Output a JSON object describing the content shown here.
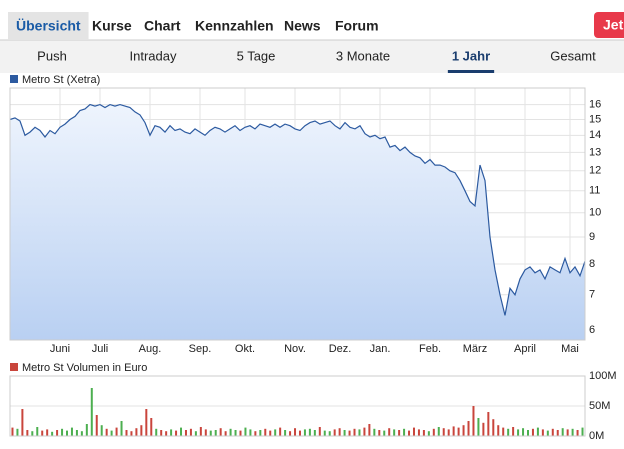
{
  "nav": {
    "tabs": [
      "Übersicht",
      "Kurse",
      "Chart",
      "Kennzahlen",
      "News",
      "Forum"
    ],
    "selected": 0,
    "button": "Jet"
  },
  "range_tabs": {
    "tabs": [
      "Push",
      "Intraday",
      "5 Tage",
      "3 Monate",
      "1 Jahr",
      "Gesamt"
    ],
    "selected": 4
  },
  "chart_data": [
    {
      "type": "line",
      "log": true,
      "grid": true,
      "categories": [
        null,
        null,
        null,
        null,
        null,
        null,
        null,
        null,
        null,
        null,
        "Juni",
        null,
        null,
        null,
        null,
        null,
        null,
        null,
        "Juli",
        null,
        null,
        null,
        null,
        null,
        null,
        null,
        null,
        null,
        "Aug.",
        null,
        null,
        null,
        null,
        null,
        null,
        null,
        null,
        null,
        "Sep.",
        null,
        null,
        null,
        null,
        null,
        null,
        null,
        null,
        "Okt.",
        null,
        null,
        null,
        null,
        null,
        null,
        null,
        null,
        null,
        "Nov.",
        null,
        null,
        null,
        null,
        null,
        null,
        null,
        null,
        "Dez.",
        null,
        null,
        null,
        null,
        null,
        null,
        null,
        "Jan.",
        null,
        null,
        null,
        null,
        null,
        null,
        null,
        null,
        null,
        "Feb.",
        null,
        null,
        null,
        null,
        null,
        null,
        null,
        null,
        "März",
        null,
        null,
        null,
        null,
        null,
        null,
        null,
        null,
        null,
        "April",
        null,
        null,
        null,
        null,
        null,
        null,
        null,
        null,
        "Mai",
        null,
        null,
        null
      ],
      "series": [
        {
          "name": "Metro St (Xetra)",
          "color": "#2c5aa0",
          "values": [
            15.0,
            15.1,
            14.9,
            14.0,
            14.2,
            14.5,
            14.3,
            13.9,
            14.3,
            14.1,
            14.5,
            14.7,
            15.0,
            15.2,
            15.6,
            15.7,
            16.0,
            15.9,
            16.0,
            15.8,
            16.0,
            15.9,
            16.0,
            15.9,
            15.8,
            15.5,
            15.3,
            14.8,
            14.0,
            14.6,
            14.5,
            14.2,
            14.6,
            14.3,
            14.4,
            14.2,
            14.1,
            14.4,
            14.2,
            14.0,
            14.3,
            14.5,
            14.4,
            14.2,
            14.4,
            14.6,
            14.3,
            14.5,
            14.6,
            14.4,
            14.7,
            14.6,
            14.5,
            14.7,
            14.5,
            14.7,
            14.6,
            14.4,
            14.3,
            14.6,
            14.8,
            14.9,
            14.7,
            14.8,
            14.9,
            14.6,
            14.4,
            14.8,
            14.5,
            14.4,
            14.6,
            14.1,
            13.9,
            14.0,
            13.8,
            13.9,
            13.3,
            13.4,
            13.1,
            13.3,
            13.0,
            12.8,
            12.7,
            12.4,
            12.6,
            12.3,
            12.3,
            12.2,
            12.0,
            11.9,
            11.5,
            11.0,
            10.5,
            10.3,
            12.3,
            11.5,
            9.0,
            7.8,
            7.0,
            6.4,
            7.2,
            7.0,
            7.5,
            7.8,
            7.9,
            7.7,
            7.8,
            7.5,
            7.9,
            7.8,
            7.7,
            8.2,
            7.7,
            7.9,
            7.6,
            8.1
          ]
        }
      ],
      "ylim": [
        5.75,
        17.2
      ],
      "yticks": [
        6,
        7,
        8,
        9,
        10,
        11,
        12,
        13,
        14,
        15,
        16
      ]
    },
    {
      "type": "bar",
      "grid": true,
      "up_color": "#4caf50",
      "series": [
        {
          "name": "Metro St Volumen in Euro",
          "color": "#c9453c",
          "values": [
            14,
            12,
            45,
            10,
            8,
            15,
            9,
            11,
            7,
            10,
            12,
            9,
            14,
            10,
            8,
            20,
            80,
            35,
            18,
            12,
            9,
            14,
            25,
            10,
            8,
            13,
            18,
            45,
            30,
            12,
            10,
            8,
            11,
            9,
            14,
            10,
            12,
            8,
            15,
            11,
            9,
            10,
            13,
            8,
            12,
            10,
            9,
            14,
            11,
            8,
            10,
            12,
            9,
            11,
            14,
            10,
            8,
            13,
            9,
            11,
            12,
            10,
            15,
            9,
            8,
            11,
            13,
            10,
            9,
            12,
            11,
            14,
            20,
            12,
            10,
            9,
            13,
            11,
            10,
            12,
            9,
            14,
            11,
            10,
            8,
            12,
            15,
            13,
            11,
            16,
            14,
            18,
            25,
            50,
            30,
            22,
            40,
            28,
            18,
            14,
            12,
            15,
            11,
            13,
            10,
            12,
            14,
            11,
            9,
            12,
            10,
            13,
            11,
            12,
            10,
            14
          ]
        }
      ],
      "ylim": [
        0,
        100
      ],
      "yticks": [
        {
          "value": 0,
          "label": "0M"
        },
        {
          "value": 50,
          "label": "50M"
        },
        {
          "value": 100,
          "label": "100M"
        }
      ]
    }
  ]
}
